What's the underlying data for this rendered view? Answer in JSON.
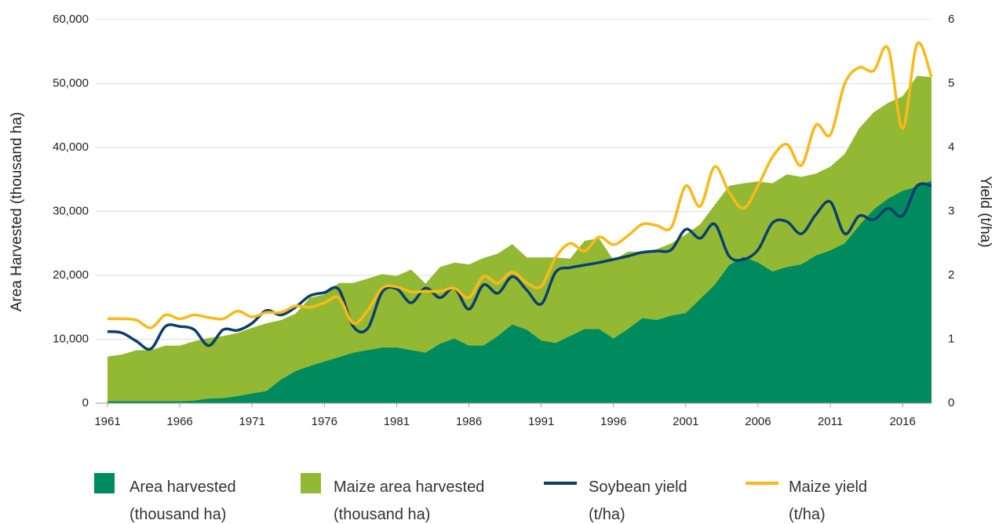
{
  "chart_data": {
    "type": "area",
    "x": [
      1961,
      1962,
      1963,
      1964,
      1965,
      1966,
      1967,
      1968,
      1969,
      1970,
      1971,
      1972,
      1973,
      1974,
      1975,
      1976,
      1977,
      1978,
      1979,
      1980,
      1981,
      1982,
      1983,
      1984,
      1985,
      1986,
      1987,
      1988,
      1989,
      1990,
      1991,
      1992,
      1993,
      1994,
      1995,
      1996,
      1997,
      1998,
      1999,
      2000,
      2001,
      2002,
      2003,
      2004,
      2005,
      2006,
      2007,
      2008,
      2009,
      2010,
      2011,
      2012,
      2013,
      2014,
      2015,
      2016,
      2017,
      2018
    ],
    "xlim": [
      1961,
      2018
    ],
    "xticks": [
      1961,
      1966,
      1971,
      1976,
      1981,
      1986,
      1991,
      1996,
      2001,
      2006,
      2011,
      2016
    ],
    "ylim": [
      0,
      60000
    ],
    "yticks": [
      0,
      {
        "value": 10000,
        "label": "10,000"
      },
      {
        "value": 20000,
        "label": "20,000"
      },
      {
        "value": 30000,
        "label": "30,000"
      },
      {
        "value": 40000,
        "label": "40,000"
      },
      {
        "value": 50000,
        "label": "50,000"
      },
      {
        "value": 60000,
        "label": "60,000"
      }
    ],
    "y2lim": [
      0,
      6
    ],
    "y2ticks": [
      0,
      1,
      2,
      3,
      4,
      5,
      6
    ],
    "ylabel": "Area Harvested (thousand ha)",
    "y2label": "Yield (t/ha)",
    "grid": true,
    "legend": "bottom",
    "series": [
      {
        "name": "Area harvested (thousand ha)",
        "type": "area",
        "color": "#008b5e",
        "values": [
          300,
          300,
          300,
          300,
          300,
          300,
          400,
          700,
          800,
          1100,
          1500,
          1900,
          3700,
          5000,
          5800,
          6500,
          7200,
          7900,
          8300,
          8700,
          8700,
          8300,
          7900,
          9300,
          10100,
          9000,
          9000,
          10500,
          12300,
          11500,
          9800,
          9400,
          10500,
          11600,
          11600,
          10100,
          11600,
          13300,
          13000,
          13700,
          14100,
          16300,
          18500,
          21600,
          22900,
          22000,
          20600,
          21300,
          21700,
          23100,
          23900,
          25000,
          27800,
          30300,
          32000,
          33200,
          33900,
          34800
        ]
      },
      {
        "name": "Maize area harvested (thousand ha)",
        "type": "area",
        "color": "#93b934",
        "values": [
          7300,
          7600,
          8300,
          8300,
          9000,
          9000,
          9700,
          10200,
          10500,
          11000,
          11800,
          12500,
          13000,
          14000,
          16500,
          17000,
          18800,
          18800,
          19500,
          20200,
          19900,
          20900,
          18700,
          21300,
          22000,
          21700,
          22700,
          23400,
          24900,
          22800,
          22800,
          22800,
          22600,
          25400,
          25800,
          22400,
          23700,
          23700,
          24100,
          25000,
          26400,
          28000,
          31000,
          34000,
          34400,
          34700,
          34400,
          35800,
          35400,
          35900,
          37000,
          39000,
          43000,
          45500,
          47000,
          48000,
          51200,
          51000
        ]
      },
      {
        "name": "Soybean yield (t/ha)",
        "type": "line",
        "axis": "y2",
        "color": "#0b3f6e",
        "values": [
          1.12,
          1.1,
          0.97,
          0.85,
          1.2,
          1.2,
          1.15,
          0.9,
          1.15,
          1.14,
          1.25,
          1.45,
          1.38,
          1.5,
          1.68,
          1.73,
          1.78,
          1.2,
          1.17,
          1.74,
          1.79,
          1.57,
          1.8,
          1.65,
          1.8,
          1.47,
          1.85,
          1.72,
          1.98,
          1.77,
          1.55,
          2.05,
          2.12,
          2.16,
          2.2,
          2.25,
          2.3,
          2.36,
          2.38,
          2.4,
          2.72,
          2.58,
          2.8,
          2.3,
          2.25,
          2.4,
          2.82,
          2.84,
          2.65,
          2.95,
          3.15,
          2.65,
          2.93,
          2.87,
          3.05,
          2.93,
          3.4,
          3.4
        ]
      },
      {
        "name": "Maize yield (t/ha)",
        "type": "line",
        "axis": "y2",
        "color": "#fbb919",
        "values": [
          1.32,
          1.32,
          1.3,
          1.18,
          1.38,
          1.32,
          1.38,
          1.34,
          1.32,
          1.44,
          1.35,
          1.42,
          1.42,
          1.52,
          1.5,
          1.57,
          1.65,
          1.25,
          1.45,
          1.8,
          1.82,
          1.74,
          1.75,
          1.75,
          1.8,
          1.65,
          1.98,
          1.88,
          2.05,
          1.88,
          1.83,
          2.28,
          2.5,
          2.38,
          2.6,
          2.48,
          2.62,
          2.8,
          2.78,
          2.75,
          3.4,
          3.08,
          3.7,
          3.3,
          3.05,
          3.4,
          3.85,
          4.05,
          3.72,
          4.35,
          4.2,
          5.0,
          5.25,
          5.2,
          5.55,
          4.3,
          5.62,
          5.1
        ]
      }
    ]
  }
}
